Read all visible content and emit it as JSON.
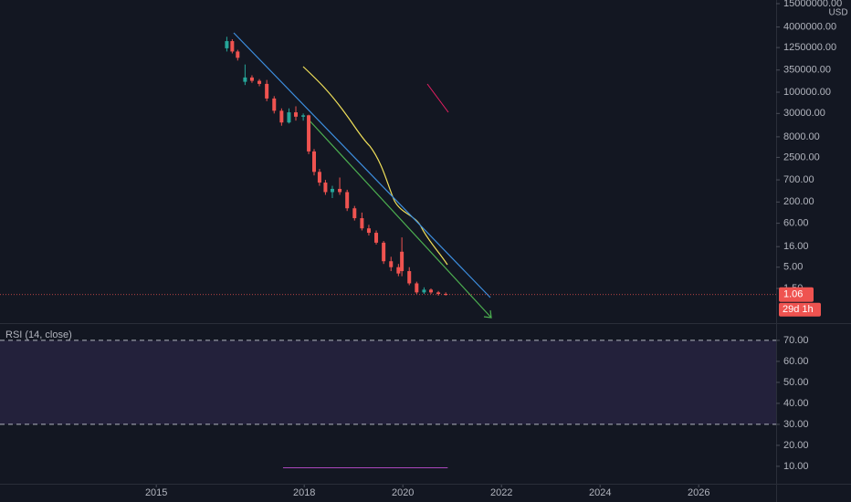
{
  "chart_data": [
    {
      "type": "candlestick",
      "log_scale": true,
      "currency": "USD",
      "x": [
        2016.43,
        2016.54,
        2016.65,
        2016.8,
        2016.94,
        2017.09,
        2017.24,
        2017.39,
        2017.54,
        2017.69,
        2017.83,
        2017.98,
        2018.09,
        2018.2,
        2018.31,
        2018.43,
        2018.57,
        2018.72,
        2018.87,
        2019.02,
        2019.17,
        2019.31,
        2019.46,
        2019.61,
        2019.76,
        2019.91,
        2019.98,
        2020.13,
        2020.28,
        2020.43,
        2020.57,
        2020.72,
        2020.87
      ],
      "open": [
        1200000,
        1800000,
        1000000,
        180000,
        230000,
        190000,
        160000,
        70000,
        35000,
        18000,
        32000,
        25000,
        27000,
        3500,
        1100,
        600,
        350,
        420,
        350,
        140,
        80,
        45,
        35,
        20,
        7,
        5,
        12,
        4,
        2,
        1.2,
        1.4,
        1.2,
        1.1
      ],
      "high": [
        2300000,
        2000000,
        1100000,
        480000,
        260000,
        210000,
        200000,
        80000,
        40000,
        40000,
        45000,
        30000,
        28000,
        4000,
        1300,
        700,
        500,
        800,
        400,
        160,
        110,
        55,
        40,
        22,
        9,
        6,
        27,
        5,
        2.2,
        1.6,
        1.5,
        1.3,
        1.2
      ],
      "low": [
        1000000,
        900000,
        600000,
        150000,
        170000,
        140000,
        60000,
        30000,
        15000,
        17000,
        20000,
        20000,
        3000,
        900,
        500,
        300,
        250,
        300,
        120,
        70,
        40,
        30,
        18,
        6,
        4,
        3,
        3,
        1.8,
        1.1,
        1.1,
        1.1,
        1.0,
        1.0
      ],
      "close": [
        1800000,
        1000000,
        700000,
        230000,
        190000,
        160000,
        70000,
        35000,
        18000,
        32000,
        25000,
        27000,
        3500,
        1100,
        600,
        350,
        420,
        350,
        140,
        80,
        45,
        35,
        20,
        7,
        5,
        3.5,
        4,
        2,
        1.2,
        1.4,
        1.2,
        1.1,
        1.06
      ],
      "up_color": "#26a69a",
      "down_color": "#ef5350",
      "xlim": [
        2011.83,
        2027.57
      ],
      "ylim": [
        0.234,
        18450000
      ],
      "yticks": [
        {
          "value": 15000000,
          "label": "15000000.00"
        },
        {
          "value": 4000000,
          "label": "4000000.00"
        },
        {
          "value": 1250000,
          "label": "1250000.00"
        },
        {
          "value": 350000,
          "label": "350000.00"
        },
        {
          "value": 100000,
          "label": "100000.00"
        },
        {
          "value": 30000,
          "label": "30000.00"
        },
        {
          "value": 8000,
          "label": "8000.00"
        },
        {
          "value": 2500,
          "label": "2500.00"
        },
        {
          "value": 700,
          "label": "700.00"
        },
        {
          "value": 200,
          "label": "200.00"
        },
        {
          "value": 60,
          "label": "60.00"
        },
        {
          "value": 16,
          "label": "16.00"
        },
        {
          "value": 5,
          "label": "5.00"
        },
        {
          "value": 1.5,
          "label": "1.50"
        }
      ],
      "last_price": 1.06,
      "countdown": "29d 1h"
    },
    {
      "type": "line",
      "title": "RSI (14, close)",
      "series": [
        {
          "color": "#ab47bc",
          "x": [
            2017.57,
            2020.91
          ],
          "values": [
            9.3,
            9.3
          ]
        }
      ],
      "levels": [
        30,
        70
      ],
      "xlim": [
        2011.83,
        2027.57
      ],
      "xticks": [
        2015,
        2018,
        2020,
        2022,
        2024,
        2026
      ],
      "ylim": [
        1.7,
        77.8
      ],
      "yticks": [
        {
          "value": 70,
          "label": "70.00"
        },
        {
          "value": 60,
          "label": "60.00"
        },
        {
          "value": 50,
          "label": "50.00"
        },
        {
          "value": 40,
          "label": "40.00"
        },
        {
          "value": 30,
          "label": "30.00"
        },
        {
          "value": 20,
          "label": "20.00"
        },
        {
          "value": 10,
          "label": "10.00"
        }
      ]
    }
  ]
}
